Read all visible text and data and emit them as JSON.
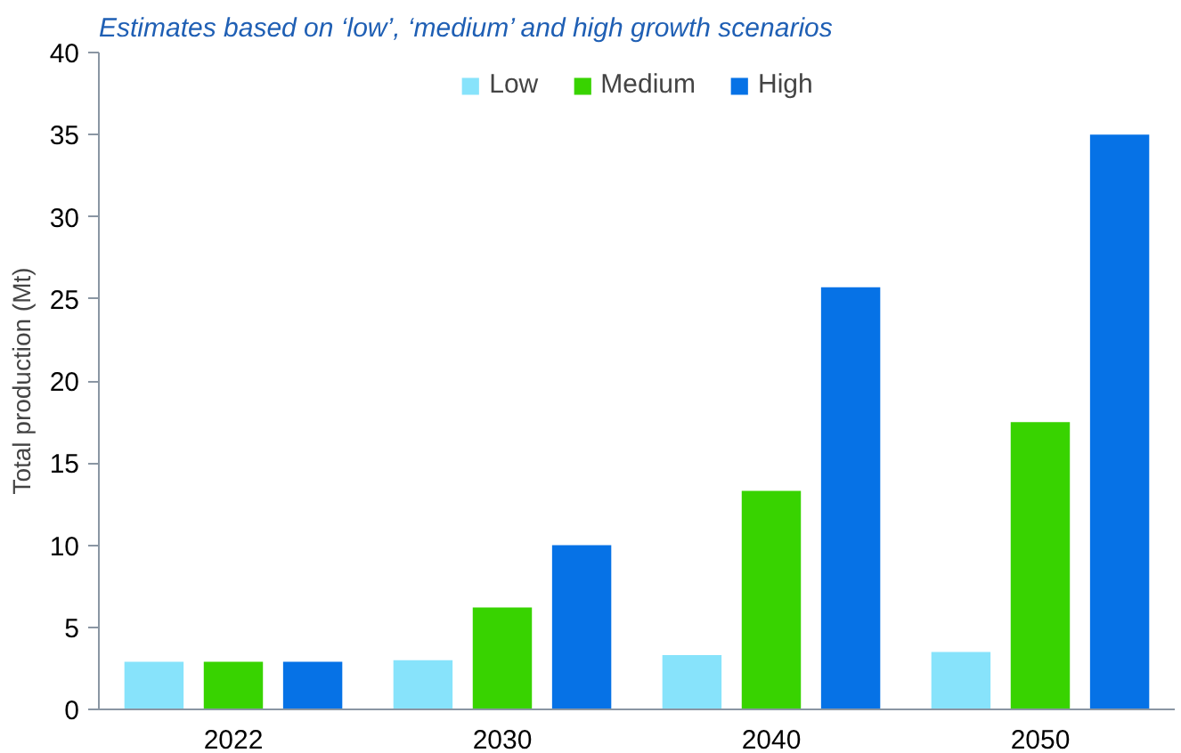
{
  "chart_data": {
    "type": "bar",
    "title": "Estimates based on ‘low’, ‘medium’ and high growth scenarios",
    "ylabel": "Total production (Mt)",
    "categories": [
      "2022",
      "2030",
      "2040",
      "2050"
    ],
    "series": [
      {
        "name": "Low",
        "color": "#87e3fb",
        "values": [
          2.9,
          3.0,
          3.3,
          3.5
        ]
      },
      {
        "name": "Medium",
        "color": "#38d300",
        "values": [
          2.9,
          6.2,
          13.3,
          17.5
        ]
      },
      {
        "name": "High",
        "color": "#0672e6",
        "values": [
          2.9,
          10.0,
          25.7,
          35.0
        ]
      }
    ],
    "ylim": [
      0,
      40
    ],
    "yticks": [
      0,
      5,
      10,
      15,
      20,
      25,
      30,
      35,
      40
    ],
    "grid": false,
    "legend": "top"
  }
}
